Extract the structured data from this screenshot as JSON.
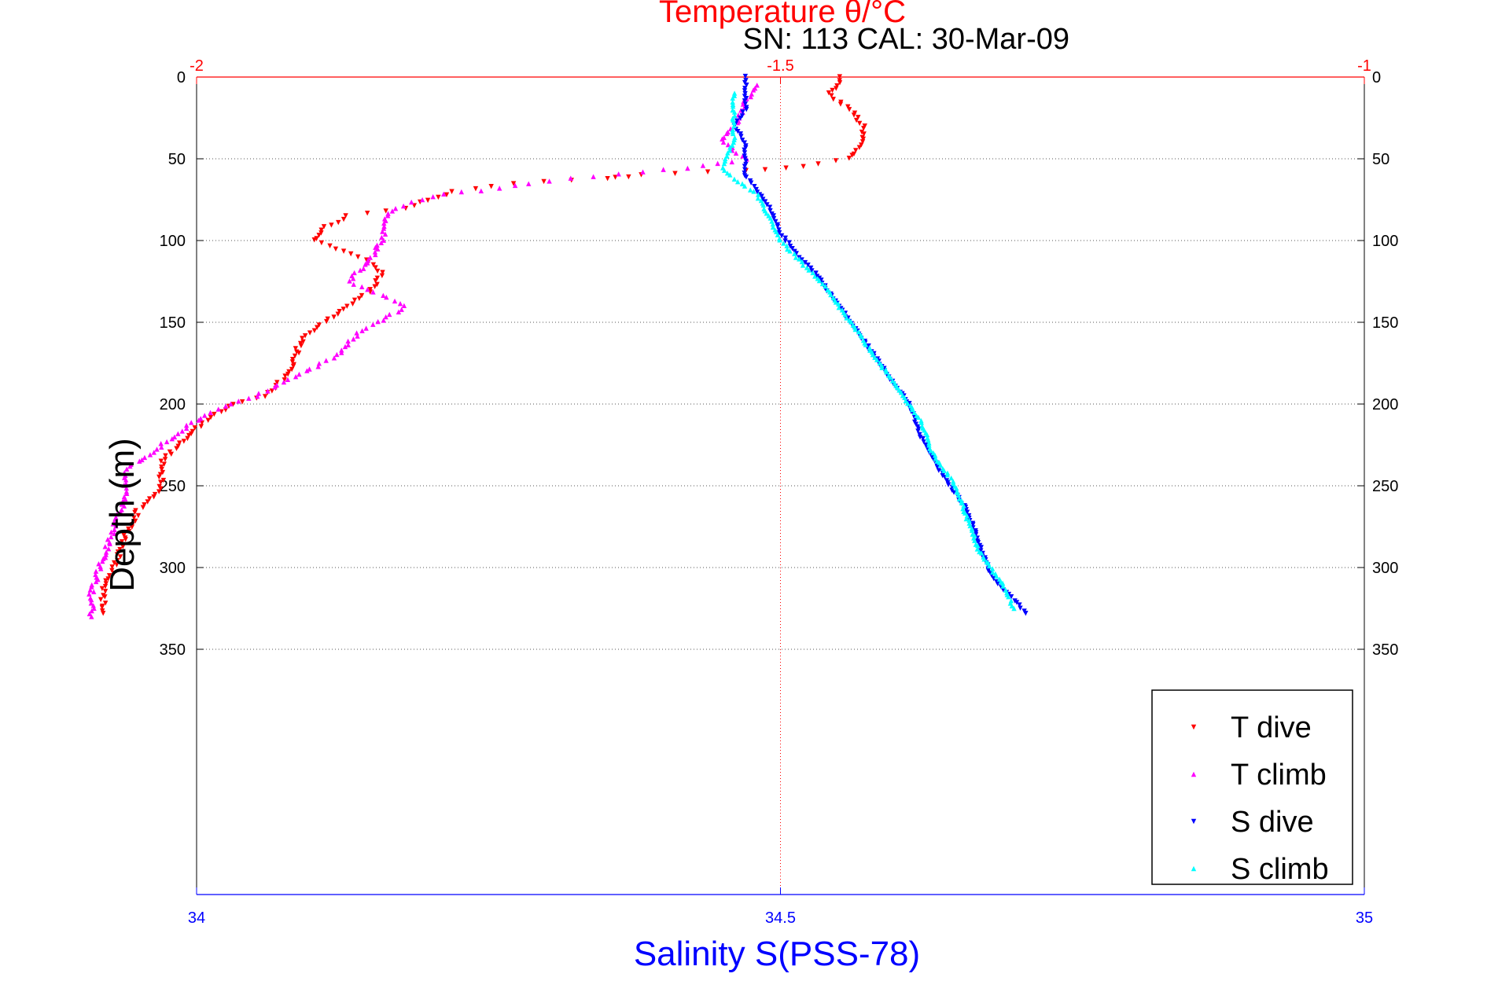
{
  "chart_data": {
    "type": "scatter",
    "title": "Temperature θ/°C",
    "subtitle": "SN: 113  CAL: 30-Mar-09",
    "ylabel": "Depth (m)",
    "xlabel": "Salinity S(PSS-78)",
    "ylim": [
      0,
      500
    ],
    "y_reversed": true,
    "yticks": [
      0,
      50,
      100,
      150,
      200,
      250,
      300,
      350
    ],
    "xlim_temperature": [
      -2,
      -1
    ],
    "xticks_temperature": [
      "-2",
      "-1.5",
      "-1"
    ],
    "xlim_salinity": [
      34,
      35
    ],
    "xticks_salinity": [
      "34",
      "34.5",
      "35"
    ],
    "grid": "dotted",
    "legend_position": "bottom-right",
    "colors": {
      "T dive": "#ff0000",
      "T climb": "#ff00ff",
      "S dive": "#0000ff",
      "S climb": "#00ffff",
      "top_axis": "#ff0000",
      "bottom_axis": "#0000ff"
    },
    "series": [
      {
        "name": "T dive",
        "axis": "temperature",
        "points": [
          [
            -1.45,
            0
          ],
          [
            -1.45,
            5
          ],
          [
            -1.46,
            10
          ],
          [
            -1.44,
            20
          ],
          [
            -1.43,
            30
          ],
          [
            -1.43,
            40
          ],
          [
            -1.44,
            50
          ],
          [
            -1.48,
            55
          ],
          [
            -1.53,
            57
          ],
          [
            -1.62,
            60
          ],
          [
            -1.65,
            62
          ],
          [
            -1.73,
            65
          ],
          [
            -1.78,
            70
          ],
          [
            -1.8,
            75
          ],
          [
            -1.82,
            80
          ],
          [
            -1.87,
            85
          ],
          [
            -1.89,
            92
          ],
          [
            -1.9,
            100
          ],
          [
            -1.86,
            110
          ],
          [
            -1.84,
            120
          ],
          [
            -1.85,
            130
          ],
          [
            -1.88,
            145
          ],
          [
            -1.91,
            160
          ],
          [
            -1.92,
            180
          ],
          [
            -1.94,
            195
          ],
          [
            -1.97,
            200
          ],
          [
            -2.0,
            215
          ],
          [
            -2.03,
            235
          ],
          [
            -2.03,
            250
          ],
          [
            -2.05,
            265
          ],
          [
            -2.06,
            280
          ],
          [
            -2.07,
            300
          ],
          [
            -2.08,
            315
          ],
          [
            -2.08,
            328
          ]
        ]
      },
      {
        "name": "T climb",
        "axis": "temperature",
        "points": [
          [
            -1.52,
            5
          ],
          [
            -1.53,
            15
          ],
          [
            -1.54,
            30
          ],
          [
            -1.55,
            40
          ],
          [
            -1.53,
            50
          ],
          [
            -1.58,
            56
          ],
          [
            -1.64,
            59
          ],
          [
            -1.7,
            64
          ],
          [
            -1.74,
            68
          ],
          [
            -1.79,
            72
          ],
          [
            -1.83,
            80
          ],
          [
            -1.84,
            88
          ],
          [
            -1.84,
            98
          ],
          [
            -1.85,
            110
          ],
          [
            -1.87,
            125
          ],
          [
            -1.82,
            140
          ],
          [
            -1.86,
            155
          ],
          [
            -1.88,
            170
          ],
          [
            -1.92,
            185
          ],
          [
            -1.95,
            195
          ],
          [
            -1.99,
            205
          ],
          [
            -2.02,
            220
          ],
          [
            -2.06,
            240
          ],
          [
            -2.06,
            255
          ],
          [
            -2.07,
            275
          ],
          [
            -2.08,
            295
          ],
          [
            -2.09,
            315
          ],
          [
            -2.09,
            330
          ]
        ]
      },
      {
        "name": "S dive",
        "axis": "salinity",
        "points": [
          [
            34.47,
            0
          ],
          [
            34.47,
            10
          ],
          [
            34.47,
            20
          ],
          [
            34.46,
            30
          ],
          [
            34.47,
            40
          ],
          [
            34.47,
            50
          ],
          [
            34.47,
            60
          ],
          [
            34.48,
            70
          ],
          [
            34.49,
            80
          ],
          [
            34.5,
            95
          ],
          [
            34.51,
            105
          ],
          [
            34.53,
            120
          ],
          [
            34.55,
            140
          ],
          [
            34.57,
            160
          ],
          [
            34.59,
            180
          ],
          [
            34.61,
            200
          ],
          [
            34.62,
            220
          ],
          [
            34.64,
            245
          ],
          [
            34.66,
            265
          ],
          [
            34.67,
            285
          ],
          [
            34.68,
            305
          ],
          [
            34.7,
            320
          ],
          [
            34.71,
            328
          ]
        ]
      },
      {
        "name": "S climb",
        "axis": "salinity",
        "points": [
          [
            34.46,
            10
          ],
          [
            34.46,
            25
          ],
          [
            34.46,
            40
          ],
          [
            34.45,
            55
          ],
          [
            34.46,
            62
          ],
          [
            34.48,
            72
          ],
          [
            34.49,
            85
          ],
          [
            34.5,
            100
          ],
          [
            34.52,
            115
          ],
          [
            34.54,
            130
          ],
          [
            34.56,
            150
          ],
          [
            34.58,
            170
          ],
          [
            34.6,
            190
          ],
          [
            34.62,
            210
          ],
          [
            34.63,
            230
          ],
          [
            34.65,
            250
          ],
          [
            34.66,
            270
          ],
          [
            34.67,
            290
          ],
          [
            34.69,
            310
          ],
          [
            34.7,
            325
          ]
        ]
      }
    ],
    "legend": [
      "T dive",
      "T climb",
      "S dive",
      "S climb"
    ]
  }
}
